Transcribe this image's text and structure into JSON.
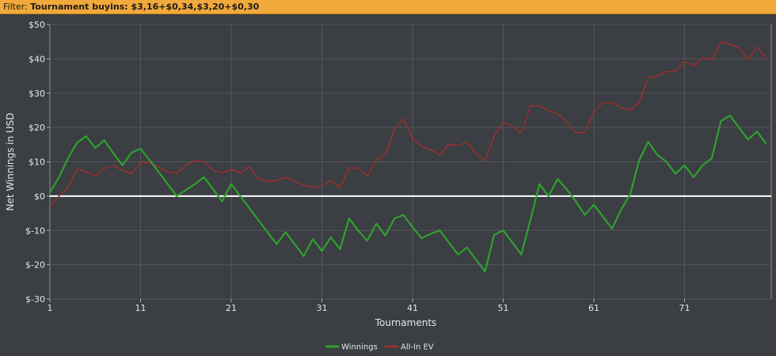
{
  "filter": {
    "label": "Filter:",
    "value": "Tournament buyins: $3,16+$0,34,$3,20+$0,30"
  },
  "chart_data": {
    "type": "line",
    "xlabel": "Tournaments",
    "ylabel": "Net Winnings in USD",
    "xlim": [
      1,
      79
    ],
    "ylim": [
      -30,
      50
    ],
    "x_ticks": [
      1,
      11,
      21,
      31,
      41,
      51,
      61,
      71
    ],
    "y_ticks": [
      50,
      40,
      30,
      20,
      10,
      0,
      -10,
      -20,
      -30
    ],
    "y_tick_labels": [
      "$50",
      "$40",
      "$30",
      "$20",
      "$10",
      "$0",
      "$-10",
      "$-20",
      "$-30"
    ],
    "grid": true,
    "zero_line": true,
    "legend_position": "bottom-center",
    "series": [
      {
        "name": "Winnings",
        "color": "#2fa02f",
        "points": [
          [
            1,
            1
          ],
          [
            2,
            5.5
          ],
          [
            3,
            11
          ],
          [
            4,
            15.5
          ],
          [
            5,
            17.5
          ],
          [
            6,
            14
          ],
          [
            7,
            16.3
          ],
          [
            8,
            12.5
          ],
          [
            9,
            9
          ],
          [
            10,
            12.7
          ],
          [
            11,
            13.8
          ],
          [
            12,
            10.5
          ],
          [
            13,
            7
          ],
          [
            14,
            3.5
          ],
          [
            15,
            0
          ],
          [
            16,
            1.8
          ],
          [
            17,
            3.5
          ],
          [
            18,
            5.5
          ],
          [
            19,
            2
          ],
          [
            20,
            -1.5
          ],
          [
            21,
            3.5
          ],
          [
            22,
            0
          ],
          [
            23,
            -3.5
          ],
          [
            24,
            -7
          ],
          [
            25,
            -10.5
          ],
          [
            26,
            -14
          ],
          [
            27,
            -10.5
          ],
          [
            28,
            -14
          ],
          [
            29,
            -17.5
          ],
          [
            30,
            -12.5
          ],
          [
            31,
            -16
          ],
          [
            32,
            -12
          ],
          [
            33,
            -15.5
          ],
          [
            34,
            -6.5
          ],
          [
            35,
            -10
          ],
          [
            36,
            -13
          ],
          [
            37,
            -8
          ],
          [
            38,
            -11.5
          ],
          [
            39,
            -6.5
          ],
          [
            40,
            -5.5
          ],
          [
            41,
            -9
          ],
          [
            42,
            -12.3
          ],
          [
            43,
            -11
          ],
          [
            44,
            -10
          ],
          [
            45,
            -13.5
          ],
          [
            46,
            -17
          ],
          [
            47,
            -15
          ],
          [
            48,
            -18.5
          ],
          [
            49,
            -22
          ],
          [
            50,
            -11.3
          ],
          [
            51,
            -10
          ],
          [
            52,
            -13.5
          ],
          [
            53,
            -17
          ],
          [
            54,
            -7
          ],
          [
            55,
            3.5
          ],
          [
            56,
            0
          ],
          [
            57,
            5
          ],
          [
            58,
            2
          ],
          [
            59,
            -1.5
          ],
          [
            60,
            -5.5
          ],
          [
            61,
            -2.5
          ],
          [
            62,
            -6
          ],
          [
            63,
            -9.5
          ],
          [
            64,
            -4
          ],
          [
            65,
            0.5
          ],
          [
            66,
            10.5
          ],
          [
            67,
            15.8
          ],
          [
            68,
            12
          ],
          [
            69,
            10
          ],
          [
            70,
            6.5
          ],
          [
            71,
            9
          ],
          [
            72,
            5.5
          ],
          [
            73,
            9
          ],
          [
            74,
            11
          ],
          [
            75,
            21.8
          ],
          [
            76,
            23.5
          ],
          [
            77,
            20
          ],
          [
            78,
            16.5
          ],
          [
            79,
            18.8
          ],
          [
            80,
            15.3
          ]
        ]
      },
      {
        "name": "All-In EV",
        "color": "#9b2f2f",
        "points": [
          [
            1,
            -3
          ],
          [
            2,
            0
          ],
          [
            3,
            2.5
          ],
          [
            4,
            8
          ],
          [
            5,
            7
          ],
          [
            6,
            5.8
          ],
          [
            7,
            8
          ],
          [
            8,
            9
          ],
          [
            9,
            7.5
          ],
          [
            10,
            6.5
          ],
          [
            11,
            9.8
          ],
          [
            12,
            9.8
          ],
          [
            13,
            8.5
          ],
          [
            14,
            7
          ],
          [
            15,
            6.7
          ],
          [
            16,
            9
          ],
          [
            17,
            10.3
          ],
          [
            18,
            10
          ],
          [
            19,
            7.5
          ],
          [
            20,
            6.7
          ],
          [
            21,
            7.8
          ],
          [
            22,
            6.7
          ],
          [
            23,
            8.7
          ],
          [
            24,
            5
          ],
          [
            25,
            4.3
          ],
          [
            26,
            4.5
          ],
          [
            27,
            5.5
          ],
          [
            28,
            4.3
          ],
          [
            29,
            3.2
          ],
          [
            30,
            2.5
          ],
          [
            31,
            3
          ],
          [
            32,
            4.5
          ],
          [
            33,
            2.5
          ],
          [
            34,
            8.2
          ],
          [
            35,
            8.2
          ],
          [
            36,
            5.8
          ],
          [
            37,
            10.5
          ],
          [
            38,
            12
          ],
          [
            39,
            19.5
          ],
          [
            40,
            22.5
          ],
          [
            41,
            16.7
          ],
          [
            42,
            14.5
          ],
          [
            43,
            13.5
          ],
          [
            44,
            12
          ],
          [
            45,
            15
          ],
          [
            46,
            14.7
          ],
          [
            47,
            15.8
          ],
          [
            48,
            12.3
          ],
          [
            49,
            10.3
          ],
          [
            50,
            17.5
          ],
          [
            51,
            21.5
          ],
          [
            52,
            20.3
          ],
          [
            53,
            18.3
          ],
          [
            54,
            26.3
          ],
          [
            55,
            26.3
          ],
          [
            56,
            25
          ],
          [
            57,
            24
          ],
          [
            58,
            21.7
          ],
          [
            59,
            18.5
          ],
          [
            60,
            18.5
          ],
          [
            61,
            24.5
          ],
          [
            62,
            27.3
          ],
          [
            63,
            27.3
          ],
          [
            64,
            25.8
          ],
          [
            65,
            25
          ],
          [
            66,
            27.3
          ],
          [
            67,
            34.5
          ],
          [
            68,
            35
          ],
          [
            69,
            36.3
          ],
          [
            70,
            36.3
          ],
          [
            71,
            39.3
          ],
          [
            72,
            38
          ],
          [
            73,
            40.3
          ],
          [
            74,
            39.8
          ],
          [
            75,
            45
          ],
          [
            76,
            44.3
          ],
          [
            77,
            43.3
          ],
          [
            78,
            39.8
          ],
          [
            79,
            43.5
          ],
          [
            80,
            40.3
          ]
        ]
      }
    ]
  }
}
